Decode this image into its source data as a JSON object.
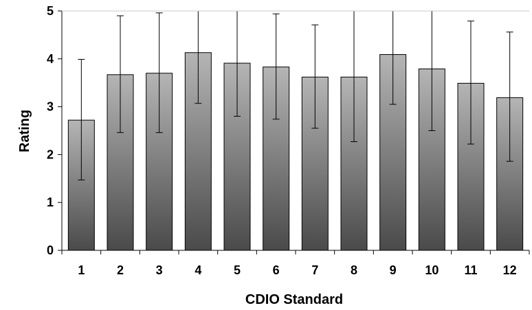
{
  "chart_data": {
    "type": "bar",
    "xlabel": "CDIO Standard",
    "ylabel": "Rating",
    "categories": [
      "1",
      "2",
      "3",
      "4",
      "5",
      "6",
      "7",
      "8",
      "9",
      "10",
      "11",
      "12"
    ],
    "values": [
      2.72,
      3.67,
      3.7,
      4.13,
      3.91,
      3.83,
      3.62,
      3.62,
      4.09,
      3.79,
      3.49,
      3.19
    ],
    "error_low": [
      1.47,
      2.46,
      2.46,
      3.07,
      2.8,
      2.74,
      2.55,
      2.27,
      3.05,
      2.5,
      2.22,
      1.86
    ],
    "error_high": [
      3.99,
      4.9,
      4.96,
      5.0,
      5.0,
      4.94,
      4.71,
      5.0,
      5.0,
      5.0,
      4.79,
      4.56
    ],
    "ylim": [
      0,
      5
    ],
    "yticks": [
      "0",
      "1",
      "2",
      "3",
      "4",
      "5"
    ],
    "grid": false,
    "legend": "none",
    "colors": {
      "bar_top": "#b5b5b5",
      "bar_bottom": "#4a4a4a",
      "bar_stroke": "#000000",
      "axis": "#000000",
      "error_bar": "#000000"
    }
  }
}
